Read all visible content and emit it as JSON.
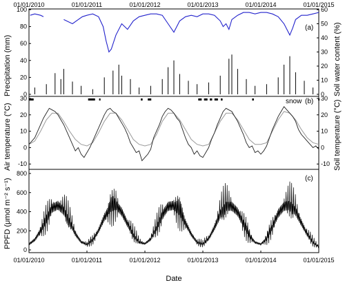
{
  "chart_data": [
    {
      "panel": "(a)",
      "type": "line",
      "top_date_ticks": [
        "01/01/2010",
        "01/01/2011",
        "01/01/2012",
        "01/01/2013",
        "01/01/2014",
        "01/01/2015"
      ],
      "ylabel_left": "Precipitation (mm)",
      "ylabel_right": "Soil water content (%)",
      "yticks_left": [
        "0",
        "20",
        "40",
        "60",
        "80",
        "100"
      ],
      "yticks_right": [
        "0",
        "10",
        "20",
        "30",
        "40",
        "50",
        "60"
      ],
      "ylim_left": [
        0,
        100
      ],
      "ylim_right": [
        0,
        60
      ],
      "series": [
        {
          "type": "line",
          "axis": "right",
          "color": "#2222cc",
          "x": [
            2010.02,
            2010.1,
            2010.2,
            2010.25,
            2010.45,
            2010.6,
            2010.75,
            2010.85,
            2010.92,
            2011.0,
            2011.1,
            2011.2,
            2011.28,
            2011.33,
            2011.38,
            2011.42,
            2011.5,
            2011.6,
            2011.7,
            2011.8,
            2011.9,
            2012.0,
            2012.1,
            2012.2,
            2012.3,
            2012.4,
            2012.5,
            2012.55,
            2012.6,
            2012.7,
            2012.8,
            2012.9,
            2013.0,
            2013.1,
            2013.2,
            2013.3,
            2013.35,
            2013.4,
            2013.45,
            2013.5,
            2013.6,
            2013.7,
            2013.8,
            2013.9,
            2014.0,
            2014.1,
            2014.2,
            2014.3,
            2014.4,
            2014.45,
            2014.5,
            2014.55,
            2014.6,
            2014.7,
            2014.8,
            2014.9,
            2015.0
          ],
          "y": [
            56,
            57,
            56,
            55,
            null,
            53,
            50,
            53,
            55,
            56,
            57,
            55,
            48,
            38,
            30,
            32,
            42,
            50,
            46,
            52,
            55,
            56,
            57,
            57,
            56,
            50,
            44,
            48,
            52,
            55,
            56,
            55,
            57,
            57,
            56,
            52,
            48,
            50,
            46,
            53,
            56,
            58,
            58,
            57,
            58,
            58,
            57,
            55,
            50,
            46,
            42,
            47,
            53,
            56,
            56,
            57,
            58
          ]
        },
        {
          "type": "bar",
          "axis": "left",
          "color": "#000000",
          "note": "daily precipitation bars, mostly below 25 mm, maxima near 47 mm",
          "x": [
            2010.1,
            2010.3,
            2010.45,
            2010.55,
            2010.6,
            2010.75,
            2010.9,
            2011.1,
            2011.3,
            2011.45,
            2011.55,
            2011.6,
            2011.75,
            2011.9,
            2012.1,
            2012.3,
            2012.4,
            2012.5,
            2012.6,
            2012.75,
            2012.9,
            2013.1,
            2013.3,
            2013.45,
            2013.5,
            2013.6,
            2013.75,
            2013.9,
            2014.1,
            2014.3,
            2014.4,
            2014.5,
            2014.6,
            2014.75,
            2014.9
          ],
          "y": [
            8,
            12,
            25,
            18,
            30,
            15,
            10,
            6,
            20,
            28,
            35,
            22,
            18,
            8,
            10,
            18,
            32,
            40,
            24,
            16,
            12,
            14,
            22,
            42,
            47,
            30,
            18,
            10,
            12,
            20,
            35,
            45,
            26,
            16,
            8
          ]
        },
        {
          "type": "markers",
          "label": "snow",
          "color": "#000000",
          "periods": [
            [
              2010.0,
              2010.08
            ],
            [
              2011.02,
              2011.14
            ],
            [
              2011.21,
              2011.23
            ],
            [
              2011.93,
              2011.96
            ],
            [
              2012.05,
              2012.11
            ],
            [
              2012.92,
              2012.98
            ],
            [
              2013.02,
              2013.08
            ],
            [
              2013.12,
              2013.16
            ],
            [
              2013.2,
              2013.26
            ],
            [
              2013.31,
              2013.34
            ],
            [
              2013.85,
              2013.88
            ],
            [
              2014.99,
              2015.0
            ]
          ]
        }
      ]
    },
    {
      "panel": "(b)",
      "type": "line",
      "ylabel_left": "Air temperature (°C)",
      "ylabel_right": "Soil temperature (°C)",
      "yticks_left": [
        "-10",
        "0",
        "10",
        "20",
        "30"
      ],
      "yticks_right": [
        "-10",
        "0",
        "10",
        "20",
        "30"
      ],
      "ylim": [
        -12,
        30
      ],
      "series": [
        {
          "type": "line",
          "color": "#222222",
          "x": [
            2010.0,
            2010.05,
            2010.1,
            2010.15,
            2010.2,
            2010.25,
            2010.3,
            2010.35,
            2010.4,
            2010.45,
            2010.5,
            2010.55,
            2010.6,
            2010.65,
            2010.7,
            2010.75,
            2010.8,
            2010.85,
            2010.9,
            2010.95,
            2011.0,
            2011.05,
            2011.1,
            2011.15,
            2011.2,
            2011.25,
            2011.3,
            2011.35,
            2011.4,
            2011.45,
            2011.5,
            2011.55,
            2011.6,
            2011.65,
            2011.7,
            2011.75,
            2011.8,
            2011.85,
            2011.9,
            2011.95,
            2012.0,
            2012.05,
            2012.1,
            2012.15,
            2012.2,
            2012.25,
            2012.3,
            2012.35,
            2012.4,
            2012.45,
            2012.5,
            2012.55,
            2012.6,
            2012.65,
            2012.7,
            2012.75,
            2012.8,
            2012.85,
            2012.9,
            2012.95,
            2013.0,
            2013.05,
            2013.1,
            2013.15,
            2013.2,
            2013.25,
            2013.3,
            2013.35,
            2013.4,
            2013.45,
            2013.5,
            2013.55,
            2013.6,
            2013.65,
            2013.7,
            2013.75,
            2013.8,
            2013.85,
            2013.9,
            2013.95,
            2014.0,
            2014.05,
            2014.1,
            2014.15,
            2014.2,
            2014.25,
            2014.3,
            2014.35,
            2014.4,
            2014.45,
            2014.5,
            2014.55,
            2014.6,
            2014.65,
            2014.7,
            2014.75,
            2014.8,
            2014.85,
            2014.9,
            2014.95,
            2015.0
          ],
          "y": [
            2,
            4,
            6,
            10,
            14,
            18,
            21,
            24,
            23,
            22,
            20,
            17,
            14,
            10,
            6,
            2,
            -2,
            0,
            -4,
            -6,
            -3,
            0,
            4,
            8,
            12,
            16,
            20,
            23,
            24,
            22,
            21,
            18,
            15,
            12,
            8,
            3,
            0,
            -3,
            -2,
            -8,
            -6,
            -4,
            -1,
            6,
            10,
            14,
            19,
            22,
            24,
            23,
            21,
            18,
            16,
            11,
            6,
            2,
            0,
            -4,
            -2,
            -5,
            -6,
            -3,
            0,
            5,
            9,
            14,
            18,
            22,
            24,
            23,
            22,
            19,
            16,
            12,
            8,
            3,
            0,
            1,
            -3,
            -2,
            -4,
            -2,
            1,
            6,
            11,
            15,
            19,
            22,
            25,
            23,
            21,
            19,
            16,
            11,
            8,
            6,
            4,
            2,
            0,
            1,
            -1
          ]
        },
        {
          "type": "line",
          "color": "#999999",
          "x": [
            2010.0,
            2010.1,
            2010.2,
            2010.3,
            2010.4,
            2010.5,
            2010.6,
            2010.7,
            2010.8,
            2010.9,
            2011.0,
            2011.1,
            2011.2,
            2011.3,
            2011.4,
            2011.5,
            2011.6,
            2011.7,
            2011.8,
            2011.9,
            2012.0,
            2012.1,
            2012.2,
            2012.3,
            2012.4,
            2012.5,
            2012.6,
            2012.7,
            2012.8,
            2012.9,
            2013.0,
            2013.1,
            2013.2,
            2013.3,
            2013.4,
            2013.5,
            2013.6,
            2013.7,
            2013.8,
            2013.9,
            2014.0,
            2014.1,
            2014.2,
            2014.3,
            2014.4,
            2014.5,
            2014.6,
            2014.7,
            2014.8,
            2014.9,
            2015.0
          ],
          "y": [
            2,
            4,
            10,
            17,
            21,
            21,
            16,
            10,
            5,
            2,
            1,
            3,
            9,
            16,
            21,
            21,
            17,
            11,
            5,
            2,
            1,
            2,
            8,
            16,
            21,
            21,
            17,
            11,
            5,
            2,
            1,
            2,
            9,
            16,
            21,
            21,
            17,
            11,
            5,
            2,
            2,
            3,
            10,
            17,
            22,
            21,
            17,
            11,
            6,
            3,
            2
          ]
        }
      ]
    },
    {
      "panel": "(c)",
      "type": "area",
      "xlabel": "Date",
      "ylabel": "PPFD (μmol m⁻² s⁻¹)",
      "yticks": [
        "0",
        "200",
        "400",
        "600",
        "800"
      ],
      "ylim": [
        0,
        800
      ],
      "xticks": [
        "01/01/2010",
        "01/01/2011",
        "01/01/2012",
        "01/01/2013",
        "01/01/2014",
        "01/01/2015"
      ],
      "series": [
        {
          "type": "area",
          "color": "#000000",
          "note": "daily PPFD envelope with strong day-to-day oscillation",
          "x": [
            2010.0,
            2010.1,
            2010.2,
            2010.3,
            2010.4,
            2010.5,
            2010.6,
            2010.7,
            2010.8,
            2010.9,
            2011.0,
            2011.1,
            2011.2,
            2011.3,
            2011.4,
            2011.5,
            2011.6,
            2011.7,
            2011.8,
            2011.9,
            2012.0,
            2012.1,
            2012.2,
            2012.3,
            2012.4,
            2012.5,
            2012.6,
            2012.7,
            2012.8,
            2012.9,
            2013.0,
            2013.1,
            2013.2,
            2013.3,
            2013.4,
            2013.5,
            2013.6,
            2013.7,
            2013.8,
            2013.9,
            2014.0,
            2014.1,
            2014.2,
            2014.3,
            2014.4,
            2014.5,
            2014.6,
            2014.7,
            2014.8,
            2014.9,
            2015.0
          ],
          "y_max": [
            120,
            200,
            350,
            520,
            690,
            720,
            650,
            480,
            300,
            160,
            100,
            180,
            340,
            560,
            700,
            740,
            640,
            460,
            280,
            150,
            120,
            200,
            380,
            600,
            720,
            730,
            650,
            470,
            290,
            150,
            110,
            210,
            400,
            620,
            720,
            720,
            640,
            460,
            280,
            150,
            110,
            210,
            400,
            630,
            720,
            730,
            650,
            470,
            290,
            150,
            60
          ],
          "y_min": [
            10,
            30,
            80,
            150,
            230,
            260,
            210,
            140,
            60,
            20,
            20,
            40,
            90,
            160,
            230,
            250,
            200,
            120,
            50,
            20,
            20,
            40,
            100,
            170,
            240,
            250,
            200,
            130,
            60,
            20,
            20,
            40,
            100,
            170,
            240,
            240,
            200,
            120,
            50,
            20,
            20,
            40,
            110,
            180,
            240,
            250,
            200,
            130,
            60,
            20,
            10
          ]
        }
      ]
    }
  ],
  "panel_labels": [
    "(a)",
    "(b)",
    "(c)"
  ],
  "snow_label": "snow",
  "bottom_axis_label": "Date"
}
